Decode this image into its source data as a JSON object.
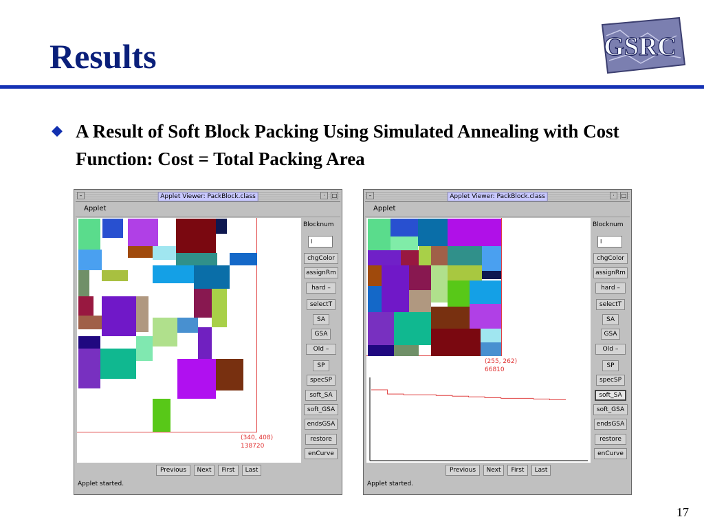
{
  "slide": {
    "title": "Results",
    "bullet": "A Result of Soft Block Packing Using Simulated Annealing with Cost Function: Cost = Total Packing Area",
    "page_number": "17",
    "logo_text": "GSRC"
  },
  "applet": {
    "window_title": "Applet Viewer: PackBlock.class",
    "menu": "Applet",
    "status": "Applet started.",
    "sidebar": {
      "blocknum_label": "Blocknum",
      "buttons": [
        "chgColor",
        "assignRm",
        "hard",
        "selectT",
        "SA",
        "GSA",
        "Old",
        "SP",
        "specSP",
        "soft_SA",
        "soft_GSA",
        "endsGSA",
        "restore",
        "enCurve"
      ]
    },
    "nav_buttons": [
      "Previous",
      "Next",
      "First",
      "Last"
    ]
  },
  "windows": {
    "left": {
      "coord": "(340, 408)",
      "cost": "138720"
    },
    "right": {
      "coord": "(255, 262)",
      "cost": "66810",
      "cost_curve": [
        1.0,
        0.94,
        0.93,
        0.93,
        0.92,
        0.91,
        0.9,
        0.89,
        0.88,
        0.88,
        0.87,
        0.86,
        0.86
      ]
    }
  }
}
